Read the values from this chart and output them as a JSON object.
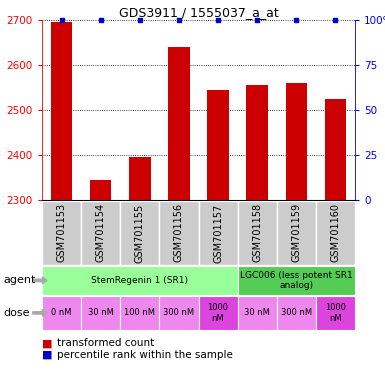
{
  "title": "GDS3911 / 1555037_a_at",
  "samples": [
    "GSM701153",
    "GSM701154",
    "GSM701155",
    "GSM701156",
    "GSM701157",
    "GSM701158",
    "GSM701159",
    "GSM701160"
  ],
  "bar_values": [
    2695,
    2345,
    2395,
    2640,
    2545,
    2555,
    2560,
    2525
  ],
  "percentile_values": [
    100,
    100,
    100,
    100,
    100,
    100,
    100,
    100
  ],
  "ylim_left": [
    2300,
    2700
  ],
  "ylim_right": [
    0,
    100
  ],
  "yticks_left": [
    2300,
    2400,
    2500,
    2600,
    2700
  ],
  "yticks_right": [
    0,
    25,
    50,
    75,
    100
  ],
  "bar_color": "#cc0000",
  "dot_color": "#0000cc",
  "agent_row": [
    {
      "label": "StemRegenin 1 (SR1)",
      "start": 0,
      "end": 5,
      "color": "#99ff99"
    },
    {
      "label": "LGC006 (less potent SR1\nanalog)",
      "start": 5,
      "end": 8,
      "color": "#55cc55"
    }
  ],
  "dose_row": [
    {
      "label": "0 nM",
      "start": 0,
      "end": 1,
      "color": "#ee88ee"
    },
    {
      "label": "30 nM",
      "start": 1,
      "end": 2,
      "color": "#ee88ee"
    },
    {
      "label": "100 nM",
      "start": 2,
      "end": 3,
      "color": "#ee88ee"
    },
    {
      "label": "300 nM",
      "start": 3,
      "end": 4,
      "color": "#ee88ee"
    },
    {
      "label": "1000\nnM",
      "start": 4,
      "end": 5,
      "color": "#dd44dd"
    },
    {
      "label": "30 nM",
      "start": 5,
      "end": 6,
      "color": "#ee88ee"
    },
    {
      "label": "300 nM",
      "start": 6,
      "end": 7,
      "color": "#ee88ee"
    },
    {
      "label": "1000\nnM",
      "start": 7,
      "end": 8,
      "color": "#dd44dd"
    }
  ],
  "sample_bg_color": "#cccccc",
  "bg_color": "#ffffff",
  "left_label_color": "#888888"
}
